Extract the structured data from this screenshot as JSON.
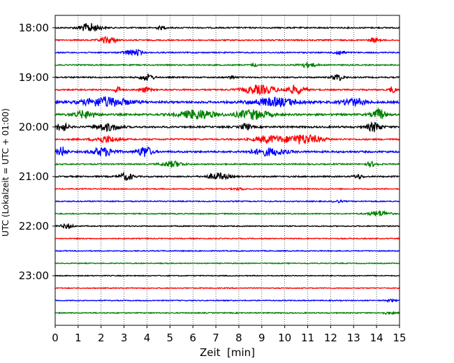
{
  "chart_data": {
    "type": "line",
    "title": "",
    "xlabel": "Zeit  [min]",
    "ylabel": "UTC (Lokalzeit = UTC + 01:00)",
    "xlim": [
      0,
      15
    ],
    "xticks": [
      0,
      1,
      2,
      3,
      4,
      5,
      6,
      7,
      8,
      9,
      10,
      11,
      12,
      13,
      14,
      15
    ],
    "ylim_minutes": [
      1065,
      1440
    ],
    "yticks": [
      {
        "label": "18:00",
        "minutes": 1080
      },
      {
        "label": "19:00",
        "minutes": 1140
      },
      {
        "label": "20:00",
        "minutes": 1200
      },
      {
        "label": "21:00",
        "minutes": 1260
      },
      {
        "label": "22:00",
        "minutes": 1320
      },
      {
        "label": "23:00",
        "minutes": 1380
      }
    ],
    "vertical_grid": "dotted",
    "trace_colors": [
      "#000000",
      "#ff0000",
      "#0000ff",
      "#008000"
    ],
    "traces": [
      {
        "start": "18:00",
        "amplitude": 0.55,
        "events": [
          {
            "t": 1.5,
            "w": 0.9,
            "a": 1.2
          },
          {
            "t": 4.6,
            "w": 0.4,
            "a": 0.4
          }
        ]
      },
      {
        "start": "18:15",
        "amplitude": 0.55,
        "events": [
          {
            "t": 2.3,
            "w": 0.7,
            "a": 0.9
          },
          {
            "t": 13.9,
            "w": 0.4,
            "a": 0.6
          }
        ]
      },
      {
        "start": "18:30",
        "amplitude": 0.5,
        "events": [
          {
            "t": 3.2,
            "w": 0.5,
            "a": 0.7
          },
          {
            "t": 3.6,
            "w": 0.4,
            "a": 0.7
          },
          {
            "t": 12.4,
            "w": 0.5,
            "a": 0.6
          }
        ]
      },
      {
        "start": "18:45",
        "amplitude": 0.5,
        "events": [
          {
            "t": 11.0,
            "w": 0.7,
            "a": 0.7
          },
          {
            "t": 8.7,
            "w": 0.3,
            "a": 0.4
          }
        ]
      },
      {
        "start": "19:00",
        "amplitude": 0.55,
        "events": [
          {
            "t": 4.0,
            "w": 0.6,
            "a": 0.9
          },
          {
            "t": 12.3,
            "w": 0.5,
            "a": 0.9
          },
          {
            "t": 7.7,
            "w": 0.3,
            "a": 0.5
          }
        ]
      },
      {
        "start": "19:15",
        "amplitude": 0.6,
        "events": [
          {
            "t": 2.7,
            "w": 0.3,
            "a": 1.0
          },
          {
            "t": 3.9,
            "w": 0.5,
            "a": 0.7
          },
          {
            "t": 8.9,
            "w": 1.5,
            "a": 1.2
          },
          {
            "t": 10.5,
            "w": 0.8,
            "a": 1.1
          },
          {
            "t": 14.7,
            "w": 0.3,
            "a": 0.9
          }
        ]
      },
      {
        "start": "19:30",
        "amplitude": 0.9,
        "events": [
          {
            "t": 2.2,
            "w": 2.0,
            "a": 1.3
          },
          {
            "t": 9.6,
            "w": 2.0,
            "a": 1.1
          },
          {
            "t": 13.0,
            "w": 1.0,
            "a": 1.0
          }
        ]
      },
      {
        "start": "19:45",
        "amplitude": 0.85,
        "events": [
          {
            "t": 1.3,
            "w": 1.0,
            "a": 1.0
          },
          {
            "t": 6.2,
            "w": 1.5,
            "a": 1.3
          },
          {
            "t": 8.6,
            "w": 1.4,
            "a": 1.3
          },
          {
            "t": 14.1,
            "w": 0.6,
            "a": 1.4
          }
        ]
      },
      {
        "start": "20:00",
        "amplitude": 0.75,
        "events": [
          {
            "t": 0.3,
            "w": 0.5,
            "a": 1.2
          },
          {
            "t": 2.3,
            "w": 1.0,
            "a": 1.0
          },
          {
            "t": 8.3,
            "w": 0.4,
            "a": 1.0
          },
          {
            "t": 13.9,
            "w": 0.6,
            "a": 1.3
          }
        ]
      },
      {
        "start": "20:15",
        "amplitude": 0.65,
        "events": [
          {
            "t": 2.2,
            "w": 1.0,
            "a": 0.9
          },
          {
            "t": 9.3,
            "w": 1.2,
            "a": 1.0
          },
          {
            "t": 10.8,
            "w": 1.6,
            "a": 1.3
          }
        ]
      },
      {
        "start": "20:30",
        "amplitude": 0.8,
        "events": [
          {
            "t": 0.3,
            "w": 0.4,
            "a": 1.3
          },
          {
            "t": 2.1,
            "w": 1.0,
            "a": 1.1
          },
          {
            "t": 3.9,
            "w": 0.6,
            "a": 1.5
          },
          {
            "t": 9.3,
            "w": 1.5,
            "a": 1.0
          }
        ]
      },
      {
        "start": "20:45",
        "amplitude": 0.55,
        "events": [
          {
            "t": 5.1,
            "w": 0.9,
            "a": 0.8
          },
          {
            "t": 13.8,
            "w": 0.5,
            "a": 0.6
          }
        ]
      },
      {
        "start": "21:00",
        "amplitude": 0.6,
        "events": [
          {
            "t": 3.1,
            "w": 0.6,
            "a": 1.0
          },
          {
            "t": 7.1,
            "w": 0.9,
            "a": 0.9
          },
          {
            "t": 13.2,
            "w": 0.4,
            "a": 0.6
          }
        ]
      },
      {
        "start": "21:15",
        "amplitude": 0.45,
        "events": [
          {
            "t": 8.0,
            "w": 0.5,
            "a": 0.3
          }
        ]
      },
      {
        "start": "21:30",
        "amplitude": 0.45,
        "events": [
          {
            "t": 12.3,
            "w": 0.4,
            "a": 0.3
          }
        ]
      },
      {
        "start": "21:45",
        "amplitude": 0.45,
        "events": [
          {
            "t": 14.1,
            "w": 0.9,
            "a": 0.8
          }
        ]
      },
      {
        "start": "22:00",
        "amplitude": 0.45,
        "events": [
          {
            "t": 0.5,
            "w": 0.5,
            "a": 0.7
          }
        ]
      },
      {
        "start": "22:15",
        "amplitude": 0.4,
        "events": []
      },
      {
        "start": "22:30",
        "amplitude": 0.4,
        "events": []
      },
      {
        "start": "22:45",
        "amplitude": 0.4,
        "events": []
      },
      {
        "start": "23:00",
        "amplitude": 0.4,
        "events": []
      },
      {
        "start": "23:15",
        "amplitude": 0.4,
        "events": []
      },
      {
        "start": "23:30",
        "amplitude": 0.4,
        "events": [
          {
            "t": 14.6,
            "w": 0.4,
            "a": 0.3
          }
        ]
      },
      {
        "start": "23:45",
        "amplitude": 0.45,
        "events": [
          {
            "t": 14.5,
            "w": 0.5,
            "a": 0.3
          }
        ]
      }
    ]
  }
}
